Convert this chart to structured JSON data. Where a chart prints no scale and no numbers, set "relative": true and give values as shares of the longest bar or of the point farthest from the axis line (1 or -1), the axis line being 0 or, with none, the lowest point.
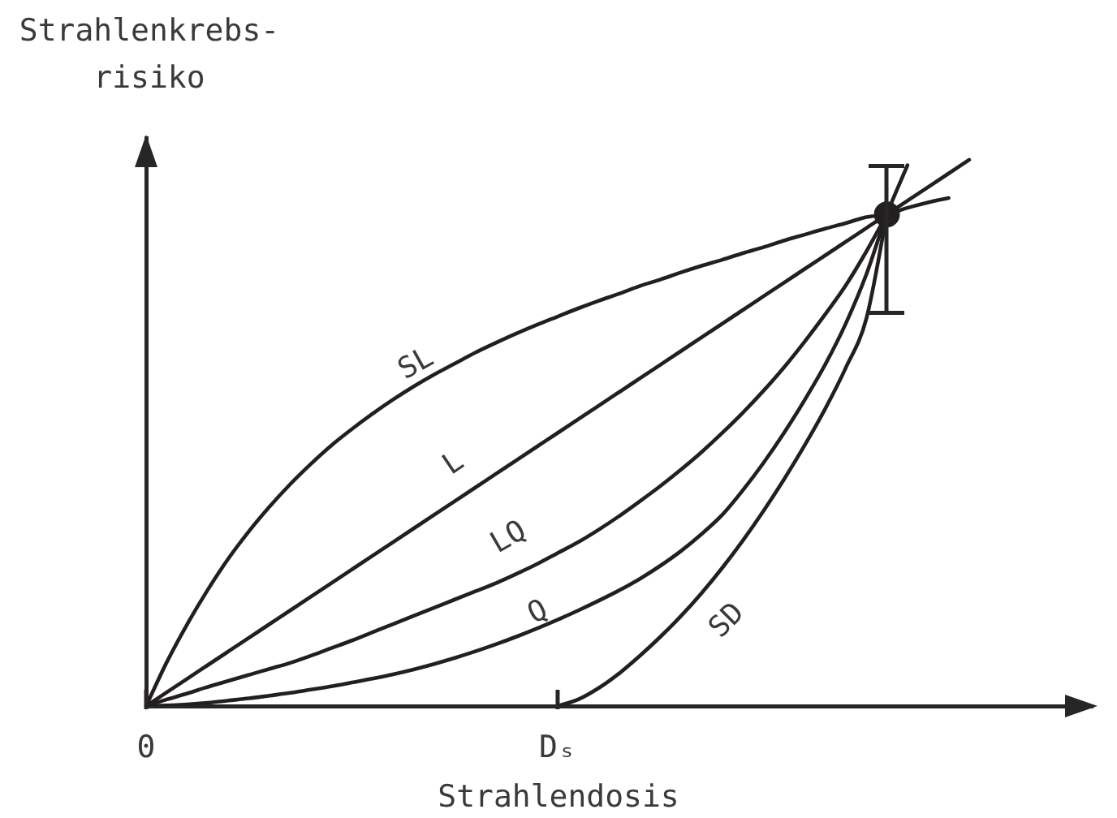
{
  "chart_data": {
    "type": "line",
    "relative": true,
    "xlabel": "Strahlendosis",
    "ylabel": "Strahlenkrebs-\nrisiko",
    "grid": false,
    "marker": "none",
    "line_style": "solid",
    "categories": [
      "0",
      null,
      null,
      null,
      null,
      null,
      null,
      null,
      null,
      null,
      null,
      null,
      null,
      null,
      null,
      null,
      null,
      null,
      null,
      null,
      "Dₛ",
      null,
      null,
      null,
      null,
      null,
      null,
      null,
      null,
      null,
      null,
      null,
      null,
      null,
      null,
      null,
      null,
      null,
      null,
      null,
      null,
      null,
      null,
      null,
      null,
      null,
      null
    ],
    "series": [
      {
        "name": "SL",
        "color": "#231f20",
        "values": [
          0,
          0.08,
          0.15,
          0.213,
          0.27,
          0.32,
          0.365,
          0.406,
          0.443,
          0.477,
          0.507,
          0.535,
          0.561,
          0.585,
          0.607,
          0.627,
          0.647,
          0.665,
          0.682,
          0.698,
          0.713,
          0.728,
          0.742,
          0.755,
          0.769,
          0.781,
          0.794,
          0.806,
          0.817,
          0.829,
          0.84,
          0.852,
          0.863,
          0.874,
          0.884,
          0.895,
          0.9,
          0.912,
          0.922,
          0.93,
          null,
          null,
          null,
          null,
          null,
          null,
          null
        ]
      },
      {
        "name": "L",
        "color": "#231f20",
        "values": [
          0,
          0.025,
          0.05,
          0.075,
          0.1,
          0.125,
          0.15,
          0.175,
          0.2,
          0.225,
          0.25,
          0.275,
          0.3,
          0.325,
          0.35,
          0.375,
          0.4,
          0.425,
          0.45,
          0.475,
          0.5,
          0.525,
          0.55,
          0.575,
          0.6,
          0.625,
          0.65,
          0.675,
          0.7,
          0.725,
          0.75,
          0.775,
          0.8,
          0.825,
          0.85,
          0.875,
          0.9,
          0.925,
          0.95,
          0.975,
          1,
          null,
          null,
          null,
          null,
          null,
          null
        ]
      },
      {
        "name": "LQ",
        "color": "#231f20",
        "values": [
          0,
          0.012,
          0.023,
          0.035,
          0.046,
          0.057,
          0.068,
          0.079,
          0.092,
          0.106,
          0.12,
          0.135,
          0.15,
          0.165,
          0.18,
          0.195,
          0.21,
          0.225,
          0.242,
          0.26,
          0.28,
          0.3,
          0.323,
          0.348,
          0.375,
          0.403,
          0.433,
          0.465,
          0.5,
          0.537,
          0.577,
          0.62,
          0.667,
          0.717,
          0.77,
          0.832,
          0.9,
          null,
          null,
          null,
          null,
          null,
          null,
          null,
          null,
          null,
          null
        ]
      },
      {
        "name": "Q",
        "color": "#231f20",
        "values": [
          0,
          0.001,
          0.003,
          0.006,
          0.01,
          0.014,
          0.019,
          0.024,
          0.03,
          0.036,
          0.043,
          0.05,
          0.058,
          0.067,
          0.077,
          0.088,
          0.1,
          0.113,
          0.127,
          0.142,
          0.158,
          0.175,
          0.193,
          0.212,
          0.233,
          0.257,
          0.284,
          0.315,
          0.35,
          0.395,
          0.445,
          0.5,
          0.56,
          0.625,
          0.7,
          0.79,
          0.9,
          0.99,
          null,
          null,
          null,
          null,
          null,
          null,
          null,
          null,
          null
        ]
      },
      {
        "name": "SD",
        "color": "#231f20",
        "values": [
          null,
          null,
          null,
          null,
          null,
          null,
          null,
          null,
          null,
          null,
          null,
          null,
          null,
          null,
          null,
          null,
          null,
          null,
          null,
          null,
          0,
          0.012,
          0.033,
          0.06,
          0.092,
          0.127,
          0.165,
          0.207,
          0.253,
          0.303,
          0.357,
          0.415,
          0.477,
          0.544,
          0.619,
          0.709,
          0.9,
          null,
          null,
          null,
          null,
          null,
          null,
          null,
          null,
          null,
          null
        ]
      },
      {
        "type": "scatter",
        "color": "#231f20",
        "marker": "circle",
        "values": [
          null,
          null,
          null,
          null,
          null,
          null,
          null,
          null,
          null,
          null,
          null,
          null,
          null,
          null,
          null,
          null,
          null,
          null,
          null,
          null,
          null,
          null,
          null,
          null,
          null,
          null,
          null,
          null,
          null,
          null,
          null,
          null,
          null,
          null,
          null,
          null,
          0.9,
          null,
          null,
          null,
          null,
          null,
          null,
          null,
          null,
          null,
          null
        ]
      }
    ]
  }
}
